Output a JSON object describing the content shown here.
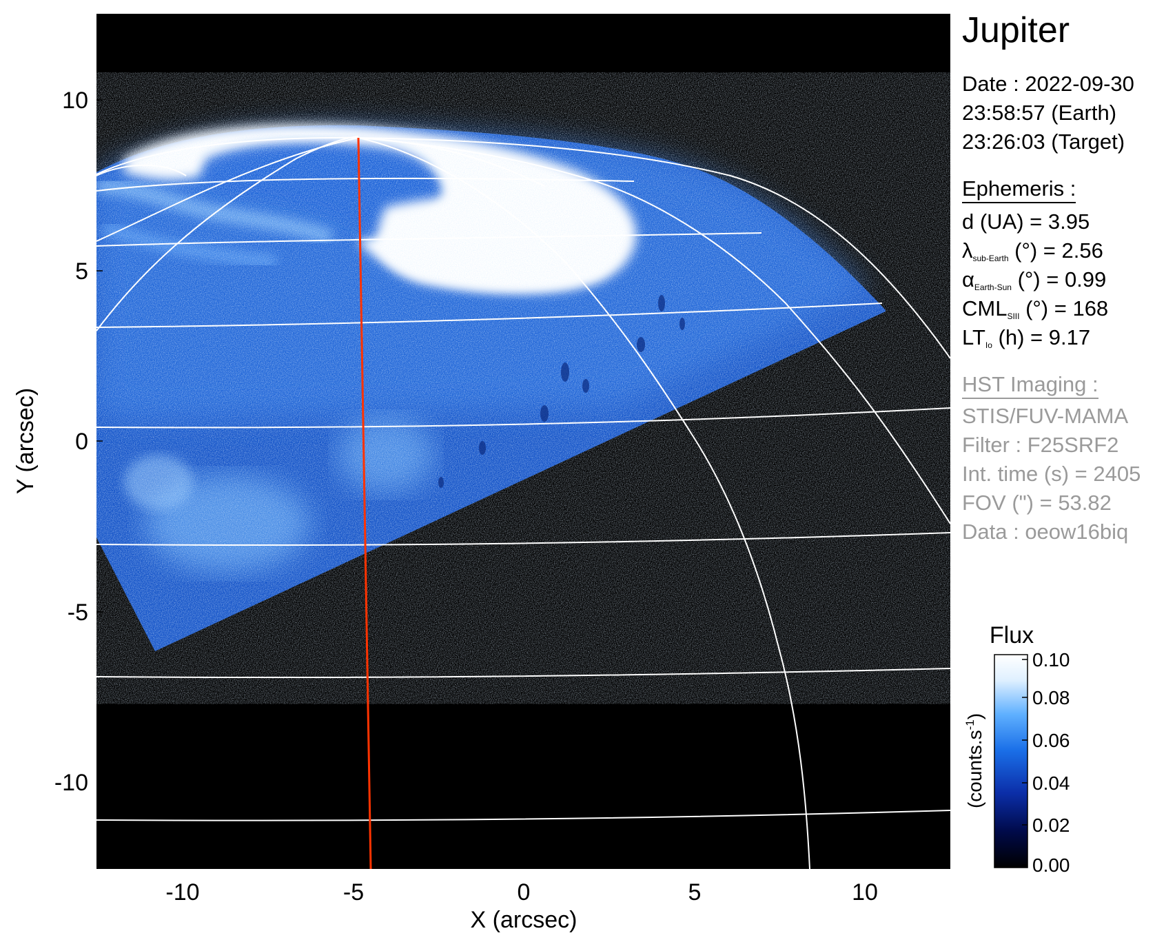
{
  "target_label": "Jupiter",
  "observation": {
    "date_line": "Date : 2022-09-30",
    "earth_time_line": "23:58:57 (Earth)",
    "target_time_line": "23:26:03 (Target)"
  },
  "ephemeris": {
    "heading": "Ephemeris :",
    "distance": "d (UA)    = 3.95",
    "lambda_symbol": "λ",
    "lambda_sub": "sub-Earth",
    "lambda_rest": " (°) = 2.56",
    "alpha_symbol": "α",
    "alpha_sub": "Earth-Sun",
    "alpha_rest": " (°) = 0.99",
    "cml_symbol": "CML",
    "cml_sub": "SIII",
    "cml_rest": " (°) = 168",
    "lt_symbol": "LT",
    "lt_sub": "Io",
    "lt_rest": " (h) = 9.17"
  },
  "imaging": {
    "heading": "HST Imaging :",
    "instrument": "STIS/FUV-MAMA",
    "filter": "Filter : F25SRF2",
    "int_time": "Int. time (s) = 2405",
    "fov": "FOV (\") = 53.82",
    "dataset": "Data : oeow16biq"
  },
  "axes": {
    "xlabel": "X (arcsec)",
    "ylabel": "Y (arcsec)",
    "xrange": [
      -12.5,
      12.5
    ],
    "yrange": [
      -12.5,
      12.5
    ],
    "xticks": [
      "-10",
      "-5",
      "0",
      "5",
      "10"
    ],
    "yticks": [
      "10",
      "5",
      "0",
      "-5",
      "-10"
    ]
  },
  "colorbar": {
    "title": "Flux",
    "label_main": "(counts.s",
    "label_sup": "-1",
    "label_close": ")",
    "range": [
      0.0,
      0.1
    ],
    "ticks": [
      "0.10",
      "0.08",
      "0.06",
      "0.04",
      "0.02",
      "0.00"
    ],
    "colormap_stops": [
      "#000000",
      "#000a4a",
      "#0b2ea8",
      "#1a6fe8",
      "#5fb0ff",
      "#dff0ff",
      "#ffffff"
    ]
  },
  "colors": {
    "background": "#000000",
    "aurora_dim": "#1554c8",
    "aurora_mid": "#3b86f0",
    "aurora_bright": "#ffffff",
    "grid": "#ffffff",
    "meridian": "#ff3300",
    "secondary_text": "#9a9a9a"
  }
}
